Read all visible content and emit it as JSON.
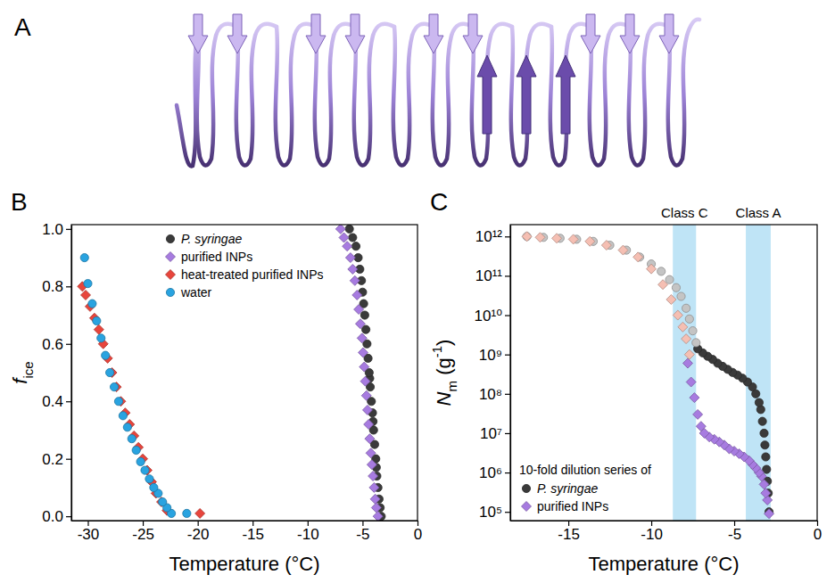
{
  "chart_data": [
    {
      "type": "diagram",
      "panel_label": "A"
    },
    {
      "type": "scatter",
      "panel_label": "B",
      "x_label": "Temperature (°C)",
      "y_label": [
        "f",
        "ice"
      ],
      "xlim": [
        -31.5,
        0
      ],
      "xticks": [
        -30,
        -25,
        -20,
        -15,
        -10,
        -5,
        0
      ],
      "ylim": [
        -0.015,
        1.015
      ],
      "yticks": [
        {
          "value": 0,
          "label": "0.0"
        },
        {
          "value": 0.2,
          "label": "0.2"
        },
        {
          "value": 0.4,
          "label": "0.4"
        },
        {
          "value": 0.6,
          "label": "0.6"
        },
        {
          "value": 0.8,
          "label": "0.8"
        },
        {
          "value": 1,
          "label": "1.0"
        }
      ],
      "grid": false,
      "legend": "upper center",
      "series": [
        {
          "name": "P. syringae",
          "color": "#3a3a3a",
          "marker": "circle",
          "x": [
            -3.3,
            -3.4,
            -3.5,
            -3.6,
            -3.7,
            -3.75,
            -3.8,
            -3.9,
            -4.0,
            -4.05,
            -4.1,
            -4.2,
            -4.3,
            -4.35,
            -4.4,
            -4.5,
            -4.6,
            -4.7,
            -4.8,
            -4.9,
            -5.0,
            -5.1,
            -5.25,
            -5.4,
            -5.6,
            -5.9,
            -6.2
          ],
          "values": [
            0.0,
            0.03,
            0.06,
            0.1,
            0.14,
            0.17,
            0.2,
            0.25,
            0.3,
            0.33,
            0.36,
            0.4,
            0.45,
            0.48,
            0.5,
            0.55,
            0.6,
            0.65,
            0.7,
            0.74,
            0.78,
            0.82,
            0.86,
            0.9,
            0.94,
            0.97,
            1.0
          ]
        },
        {
          "name": "purified INPs",
          "color": "#a77be0",
          "marker": "diamond",
          "x": [
            -3.6,
            -3.75,
            -3.85,
            -3.95,
            -4.05,
            -4.15,
            -4.25,
            -4.35,
            -4.45,
            -4.55,
            -4.65,
            -4.75,
            -4.85,
            -4.95,
            -5.05,
            -5.2,
            -5.35,
            -5.5,
            -5.7,
            -5.9,
            -6.1,
            -6.4,
            -6.7,
            -7.0
          ],
          "values": [
            0.0,
            0.03,
            0.06,
            0.1,
            0.14,
            0.18,
            0.22,
            0.27,
            0.32,
            0.37,
            0.42,
            0.47,
            0.52,
            0.57,
            0.62,
            0.67,
            0.72,
            0.77,
            0.82,
            0.86,
            0.9,
            0.94,
            0.97,
            1.0
          ]
        },
        {
          "name": "heat-treated purified INPs",
          "color": "#e8453c",
          "marker": "diamond",
          "x": [
            -19.8,
            -22.8,
            -23.3,
            -23.8,
            -24.2,
            -24.6,
            -25.0,
            -25.4,
            -25.8,
            -26.2,
            -26.6,
            -27.0,
            -27.4,
            -27.8,
            -28.2,
            -28.6,
            -29.0,
            -29.4,
            -29.8,
            -30.2,
            -30.5
          ],
          "values": [
            0.01,
            0.02,
            0.05,
            0.08,
            0.12,
            0.16,
            0.2,
            0.24,
            0.28,
            0.32,
            0.36,
            0.4,
            0.45,
            0.5,
            0.55,
            0.6,
            0.65,
            0.69,
            0.73,
            0.77,
            0.8
          ]
        },
        {
          "name": "water",
          "color": "#29a3e0",
          "marker": "circle",
          "x": [
            -21.0,
            -22.4,
            -22.8,
            -23.2,
            -23.6,
            -24.0,
            -24.4,
            -24.8,
            -25.2,
            -25.6,
            -26.0,
            -26.4,
            -26.8,
            -27.2,
            -27.6,
            -28.0,
            -28.4,
            -28.8,
            -29.2,
            -29.6,
            -30.0,
            -30.3
          ],
          "values": [
            0.01,
            0.01,
            0.03,
            0.05,
            0.08,
            0.1,
            0.13,
            0.16,
            0.19,
            0.23,
            0.27,
            0.31,
            0.35,
            0.4,
            0.45,
            0.5,
            0.56,
            0.62,
            0.68,
            0.74,
            0.81,
            0.9
          ]
        }
      ]
    },
    {
      "type": "scatter",
      "panel_label": "C",
      "x_label": "Temperature (°C)",
      "y_label": [
        "N",
        "m",
        " (g",
        "-1",
        ")"
      ],
      "log": "y",
      "xlim": [
        -18.5,
        0
      ],
      "xticks": [
        -15,
        -10,
        -5,
        0
      ],
      "ylim": [
        60000.0,
        2000000000000.0
      ],
      "yticks": [
        {
          "value": 100000.0,
          "label": "10⁵"
        },
        {
          "value": 1000000.0,
          "label": "10⁶"
        },
        {
          "value": 10000000.0,
          "label": "10⁷"
        },
        {
          "value": 100000000.0,
          "label": "10⁸"
        },
        {
          "value": 1000000000.0,
          "label": "10⁹"
        },
        {
          "value": 10000000000.0,
          "label": "10¹⁰"
        },
        {
          "value": 100000000000.0,
          "label": "10¹¹"
        },
        {
          "value": 1000000000000.0,
          "label": "10¹²"
        }
      ],
      "grid": false,
      "legend": "lower left",
      "legend_title": "10-fold dilution series of",
      "bands": [
        {
          "label": "Class C",
          "x": [
            -8.7,
            -7.3
          ]
        },
        {
          "label": "Class A",
          "x": [
            -4.3,
            -2.8
          ]
        }
      ],
      "series": [
        {
          "name": "P. syringae",
          "color": "#3a3a3a",
          "marker": "circle",
          "x": [
            -2.9,
            -2.95,
            -3.0,
            -3.05,
            -3.1,
            -3.15,
            -3.2,
            -3.3,
            -3.4,
            -3.5,
            -3.7,
            -3.9,
            -4.2,
            -4.5,
            -4.8,
            -5.1,
            -5.4,
            -5.7,
            -6.0,
            -6.3,
            -6.6,
            -6.9,
            -7.2
          ],
          "values": [
            100000.0,
            300000.0,
            600000.0,
            1200000.0,
            2500000.0,
            5000000.0,
            10000000.0,
            20000000.0,
            40000000.0,
            60000000.0,
            100000000.0,
            150000000.0,
            200000000.0,
            250000000.0,
            300000000.0,
            350000000.0,
            420000000.0,
            500000000.0,
            600000000.0,
            750000000.0,
            900000000.0,
            1100000000.0,
            1400000000.0
          ]
        },
        {
          "color": "#c4c4c4",
          "marker": "circle",
          "x": [
            -7.3,
            -7.5,
            -7.7,
            -7.9,
            -8.2,
            -8.5,
            -8.9,
            -9.4,
            -10.0,
            -10.7,
            -11.5,
            -12.5,
            -13.5,
            -14.5,
            -15.5,
            -16.5,
            -17.5
          ],
          "values": [
            2000000000.0,
            4000000000.0,
            8000000000.0,
            15000000000.0,
            30000000000.0,
            50000000000.0,
            80000000000.0,
            130000000000.0,
            200000000000.0,
            300000000000.0,
            450000000000.0,
            600000000000.0,
            750000000000.0,
            850000000000.0,
            900000000000.0,
            950000000000.0,
            1000000000000.0
          ]
        },
        {
          "name": "purified INPs",
          "color": "#a77be0",
          "marker": "diamond",
          "x": [
            -2.9,
            -3.0,
            -3.1,
            -3.2,
            -3.35,
            -3.5,
            -3.7,
            -3.9,
            -4.1,
            -4.4,
            -4.7,
            -5.0,
            -5.3,
            -5.6,
            -5.9,
            -6.2,
            -6.5,
            -6.8,
            -7.0,
            -7.2,
            -7.4,
            -7.6,
            -7.8
          ],
          "values": [
            90000.0,
            200000.0,
            300000.0,
            500000.0,
            800000.0,
            1000000.0,
            1300000.0,
            1600000.0,
            2000000.0,
            2500000.0,
            3000000.0,
            3500000.0,
            4000000.0,
            5000000.0,
            6000000.0,
            7000000.0,
            8000000.0,
            10000000.0,
            15000000.0,
            30000000.0,
            80000000.0,
            200000000.0,
            600000000.0
          ]
        },
        {
          "color": "#f5bfb3",
          "marker": "diamond",
          "x": [
            -7.7,
            -7.9,
            -8.1,
            -8.4,
            -8.8,
            -9.3,
            -10.0,
            -10.8,
            -11.7,
            -12.7,
            -13.7,
            -14.7,
            -15.7,
            -16.7,
            -17.5
          ],
          "values": [
            1000000000.0,
            2500000000.0,
            5000000000.0,
            10000000000.0,
            25000000000.0,
            60000000000.0,
            150000000000.0,
            300000000000.0,
            450000000000.0,
            600000000000.0,
            750000000000.0,
            850000000000.0,
            900000000000.0,
            950000000000.0,
            1000000000000.0
          ]
        }
      ]
    }
  ]
}
